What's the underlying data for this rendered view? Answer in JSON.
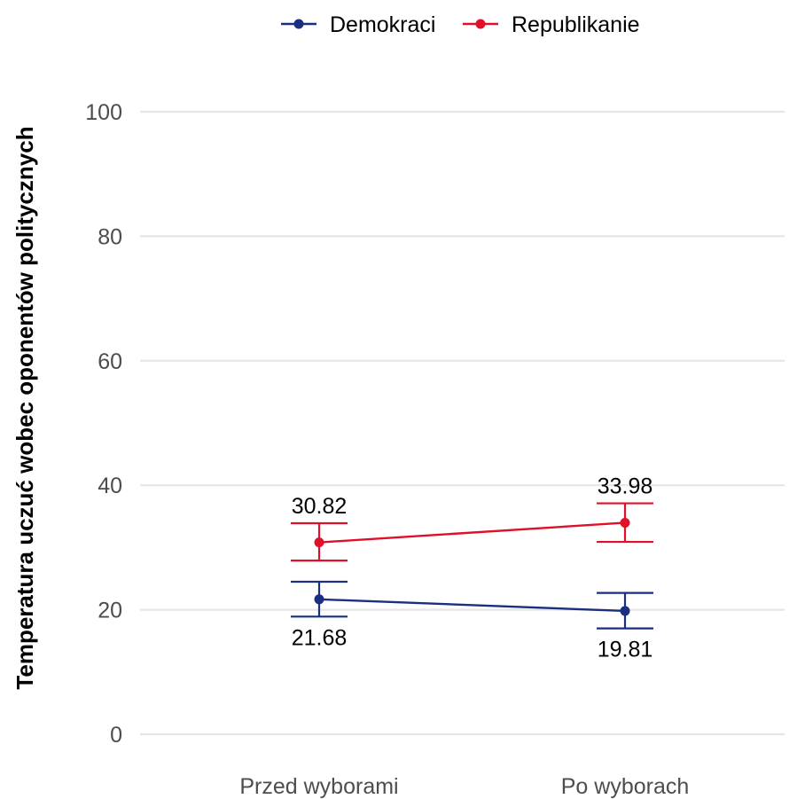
{
  "chart_data": {
    "type": "line",
    "categories": [
      "Przed wyborami",
      "Po wyborach"
    ],
    "series": [
      {
        "name": "Demokraci",
        "color": "#1a2f80",
        "values": [
          21.68,
          19.81
        ],
        "error_low": [
          18.9,
          17.0
        ],
        "error_high": [
          24.5,
          22.7
        ],
        "value_labels": [
          "21.68",
          "19.81"
        ],
        "label_position": "below"
      },
      {
        "name": "Republikanie",
        "color": "#e0102a",
        "values": [
          30.82,
          33.98
        ],
        "error_low": [
          27.9,
          30.9
        ],
        "error_high": [
          33.9,
          37.1
        ],
        "value_labels": [
          "30.82",
          "33.98"
        ],
        "label_position": "above"
      }
    ],
    "title": "",
    "xlabel": "",
    "ylabel": "Temperatura uczuć wobec oponentów politycznych",
    "ylim": [
      0,
      100
    ],
    "yticks": [
      0,
      20,
      40,
      60,
      80,
      100
    ],
    "ytick_labels": [
      "0",
      "20",
      "40",
      "60",
      "80",
      "100"
    ],
    "grid": true,
    "legend_position": "top"
  }
}
